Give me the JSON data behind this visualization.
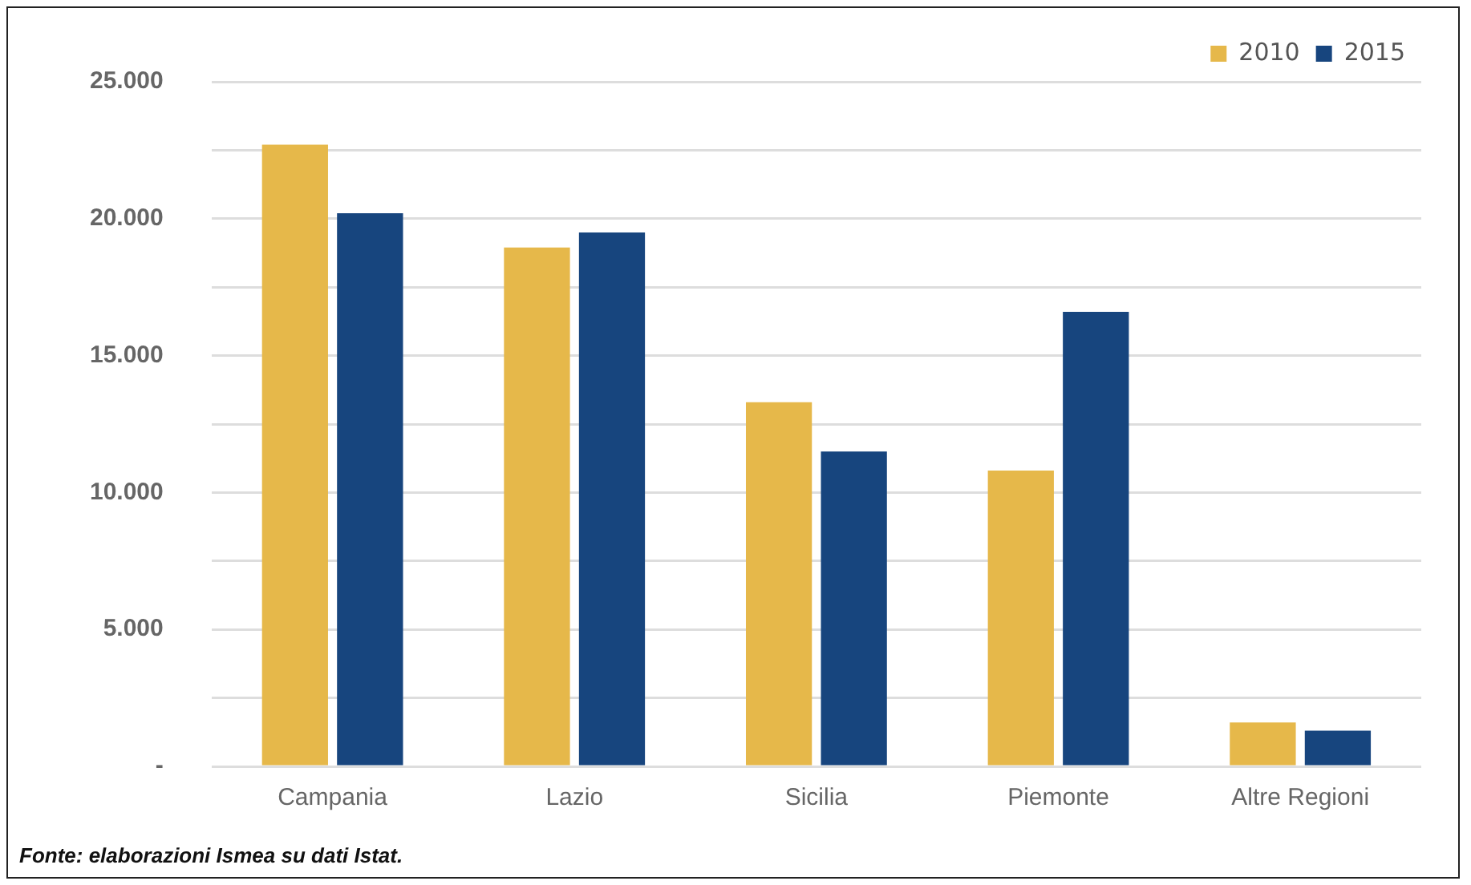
{
  "chart_data": {
    "type": "bar",
    "categories": [
      "Campania",
      "Lazio",
      "Sicilia",
      "Piemonte",
      "Altre Regioni"
    ],
    "series": [
      {
        "name": "2010",
        "color": "#e6b84a",
        "values": [
          22700,
          18950,
          13300,
          10800,
          1600
        ]
      },
      {
        "name": "2015",
        "color": "#17457e",
        "values": [
          20200,
          19500,
          11500,
          16600,
          1300
        ]
      }
    ],
    "ylim": [
      0,
      25000
    ],
    "yticks": [
      {
        "value": 0,
        "label": "-"
      },
      {
        "value": 2500,
        "label": null
      },
      {
        "value": 5000,
        "label": "5.000"
      },
      {
        "value": 7500,
        "label": null
      },
      {
        "value": 10000,
        "label": "10.000"
      },
      {
        "value": 12500,
        "label": null
      },
      {
        "value": 15000,
        "label": "15.000"
      },
      {
        "value": 17500,
        "label": null
      },
      {
        "value": 20000,
        "label": "20.000"
      },
      {
        "value": 22500,
        "label": null
      },
      {
        "value": 25000,
        "label": "25.000"
      }
    ],
    "grid": "y",
    "legend": "top right",
    "annotations": [
      "Fonte: elaborazioni Ismea su dati Istat."
    ]
  }
}
